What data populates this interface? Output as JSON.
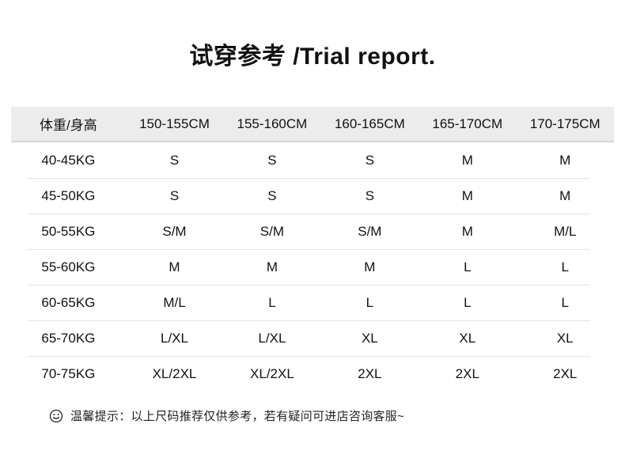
{
  "title": "试穿参考 /Trial report.",
  "table": {
    "header": [
      "体重/身高",
      "150-155CM",
      "155-160CM",
      "160-165CM",
      "165-170CM",
      "170-175CM"
    ],
    "rows": [
      {
        "weight": "40-45KG",
        "sizes": [
          "S",
          "S",
          "S",
          "M",
          "M"
        ]
      },
      {
        "weight": "45-50KG",
        "sizes": [
          "S",
          "S",
          "S",
          "M",
          "M"
        ]
      },
      {
        "weight": "50-55KG",
        "sizes": [
          "S/M",
          "S/M",
          "S/M",
          "M",
          "M/L"
        ]
      },
      {
        "weight": "55-60KG",
        "sizes": [
          "M",
          "M",
          "M",
          "L",
          "L"
        ]
      },
      {
        "weight": "60-65KG",
        "sizes": [
          "M/L",
          "L",
          "L",
          "L",
          "L"
        ]
      },
      {
        "weight": "65-70KG",
        "sizes": [
          "L/XL",
          "L/XL",
          "XL",
          "XL",
          "XL"
        ]
      },
      {
        "weight": "70-75KG",
        "sizes": [
          "XL/2XL",
          "XL/2XL",
          "2XL",
          "2XL",
          "2XL"
        ]
      }
    ]
  },
  "footer": {
    "smiley_icon": "smiley-face",
    "note": "温馨提示：以上尺码推荐仅供参考，若有疑问可进店咨询客服~"
  },
  "colors": {
    "header_bg": "#ececec",
    "header_border": "#d6d6d6",
    "row_separator": "#e3e3e3",
    "text": "#111111",
    "note_text": "#222222"
  }
}
